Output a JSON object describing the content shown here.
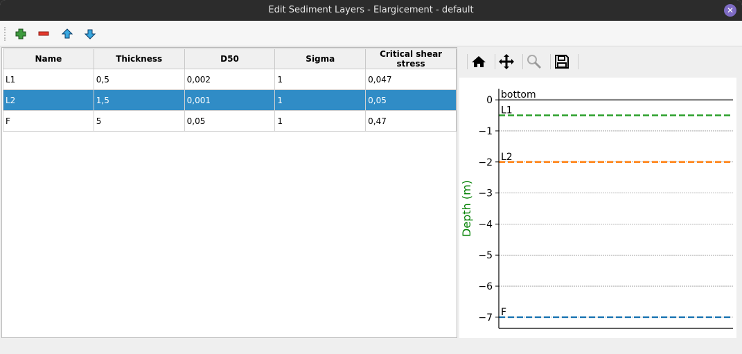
{
  "window": {
    "title": "Edit Sediment Layers - Elargicement - default"
  },
  "toolbar": {
    "icons": [
      "add-icon",
      "remove-icon",
      "move-up-icon",
      "move-down-icon"
    ]
  },
  "table": {
    "columns": [
      "Name",
      "Thickness",
      "D50",
      "Sigma",
      "Critical shear stress"
    ],
    "rows": [
      [
        "L1",
        "0,5",
        "0,002",
        "1",
        "0,047"
      ],
      [
        "L2",
        "1,5",
        "0,001",
        "1",
        "0,05"
      ],
      [
        "F",
        "5",
        "0,05",
        "1",
        "0,47"
      ]
    ],
    "selected_row": 1,
    "selection_color": "#308cc6"
  },
  "plot_toolbar": {
    "icons": [
      "home-icon",
      "pan-icon",
      "zoom-icon",
      "save-icon"
    ]
  },
  "chart_data": {
    "type": "line",
    "ylabel": "Depth (m)",
    "ylabel_color": "#008000",
    "ylim": [
      -7.36,
      0.36
    ],
    "yticks": [
      0,
      -1,
      -2,
      -3,
      -4,
      -5,
      -6,
      -7
    ],
    "ytick_labels": [
      "0",
      "−1",
      "−2",
      "−3",
      "−4",
      "−5",
      "−6",
      "−7"
    ],
    "grid": "horizontal dotted",
    "series": [
      {
        "name": "bottom",
        "y": 0,
        "color": "#888888",
        "style": "solid"
      },
      {
        "name": "L1",
        "y": -0.5,
        "color": "#2ca02c",
        "style": "dashed"
      },
      {
        "name": "L2",
        "y": -2,
        "color": "#ff7f0e",
        "style": "dashed"
      },
      {
        "name": "F",
        "y": -7,
        "color": "#1f77b4",
        "style": "dashed"
      }
    ]
  }
}
